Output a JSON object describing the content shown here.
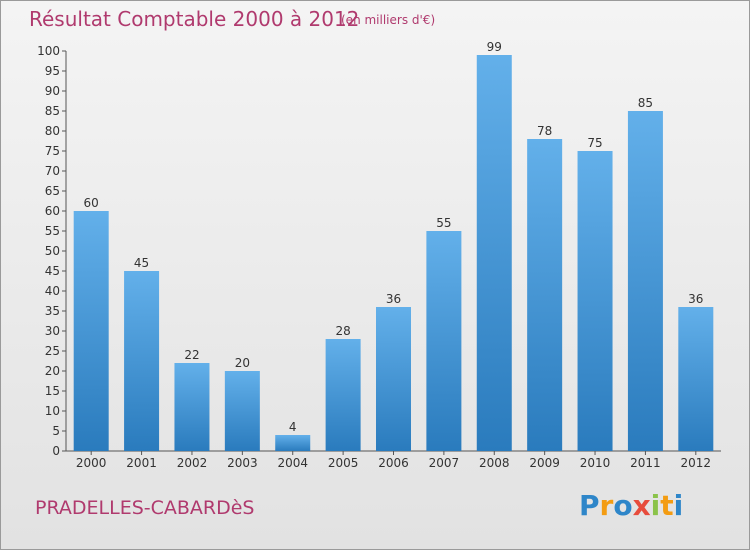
{
  "title": "Résultat Comptable 2000 à 2012",
  "subtitle": "(en milliers d'€)",
  "city": "PRADELLES-CABARDèS",
  "brand": {
    "text": "Proxiti",
    "letters": [
      "P",
      "r",
      "o",
      "x",
      "i",
      "t",
      "i"
    ],
    "colors": [
      "#2e86c9",
      "#f39c12",
      "#2e86c9",
      "#e74c3c",
      "#8bc34a",
      "#f39c12",
      "#2e86c9"
    ]
  },
  "colors": {
    "bar_top": "#63b0ea",
    "bar_bottom": "#2a7bbd",
    "accent": "#b03a6e"
  },
  "chart_data": {
    "type": "bar",
    "title": "Résultat Comptable 2000 à 2012",
    "subtitle": "(en milliers d'€)",
    "xlabel": "",
    "ylabel": "",
    "categories": [
      "2000",
      "2001",
      "2002",
      "2003",
      "2004",
      "2005",
      "2006",
      "2007",
      "2008",
      "2009",
      "2010",
      "2011",
      "2012"
    ],
    "values": [
      60,
      45,
      22,
      20,
      4,
      28,
      36,
      55,
      99,
      78,
      75,
      85,
      36
    ],
    "ylim": [
      0,
      100
    ],
    "yticks": [
      0,
      5,
      10,
      15,
      20,
      25,
      30,
      35,
      40,
      45,
      50,
      55,
      60,
      65,
      70,
      75,
      80,
      85,
      90,
      95,
      100
    ],
    "grid": false
  }
}
